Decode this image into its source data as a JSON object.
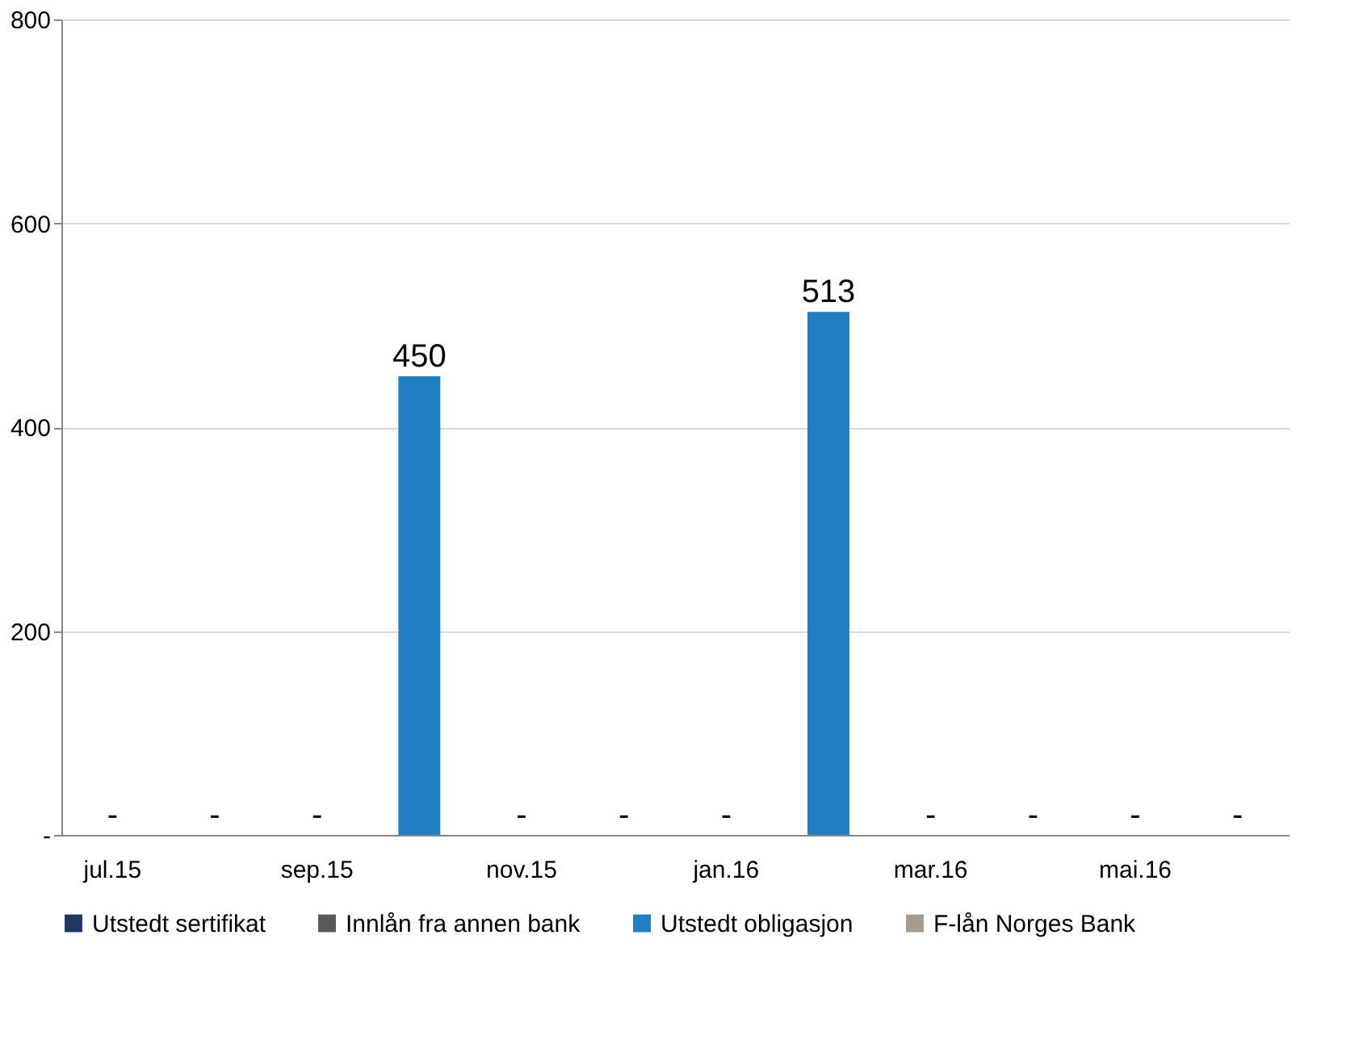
{
  "chart_data": {
    "type": "bar",
    "categories": [
      "jul.15",
      null,
      "sep.15",
      null,
      "nov.15",
      null,
      "jan.16",
      null,
      "mar.16",
      null,
      "mai.16",
      null
    ],
    "series": [
      {
        "name": "Utstedt sertifikat",
        "color": "#1f3864",
        "values": [
          0,
          0,
          0,
          0,
          0,
          0,
          0,
          0,
          0,
          0,
          0,
          0
        ]
      },
      {
        "name": "Innlån fra annen bank",
        "color": "#595959",
        "values": [
          0,
          0,
          0,
          0,
          0,
          0,
          0,
          0,
          0,
          0,
          0,
          0
        ]
      },
      {
        "name": "Utstedt obligasjon",
        "color": "#1f7fc0",
        "values": [
          0,
          0,
          0,
          450,
          0,
          0,
          0,
          513,
          0,
          0,
          0,
          0
        ],
        "value_labels": [
          "-",
          "-",
          "-",
          "450",
          "-",
          "-",
          "-",
          "513",
          "-",
          "-",
          "-",
          "-"
        ]
      },
      {
        "name": "F-lån Norges Bank",
        "color": "#a69a8c",
        "values": [
          0,
          0,
          0,
          0,
          0,
          0,
          0,
          0,
          0,
          0,
          0,
          0
        ]
      }
    ],
    "ylim": [
      0,
      800
    ],
    "yticks": [
      {
        "value": 0,
        "label": "-"
      },
      200,
      400,
      600,
      800
    ],
    "grid": "y",
    "legend": "bottom"
  }
}
